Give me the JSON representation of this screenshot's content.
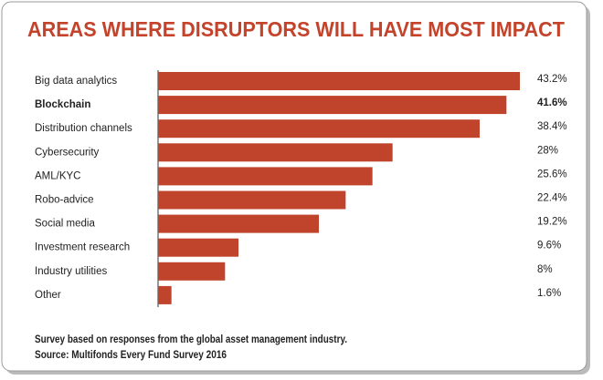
{
  "chart_data": {
    "type": "bar",
    "orientation": "horizontal",
    "title": "AREAS WHERE DISRUPTORS WILL HAVE MOST IMPACT",
    "categories": [
      "Big data analytics",
      "Blockchain",
      "Distribution channels",
      "Cybersecurity",
      "AML/KYC",
      "Robo-advice",
      "Social media",
      "Investment research",
      "Industry utilities",
      "Other"
    ],
    "values": [
      43.2,
      41.6,
      38.4,
      28,
      25.6,
      22.4,
      19.2,
      9.6,
      8,
      1.6
    ],
    "value_labels": [
      "43.2%",
      "41.6%",
      "38.4%",
      "28%",
      "25.6%",
      "22.4%",
      "19.2%",
      "9.6%",
      "8%",
      "1.6%"
    ],
    "color": "#c0432c",
    "notes": [
      "Survey based on responses from the global asset management industry.",
      "Source: Multifonds Every Fund Survey 2016"
    ]
  }
}
